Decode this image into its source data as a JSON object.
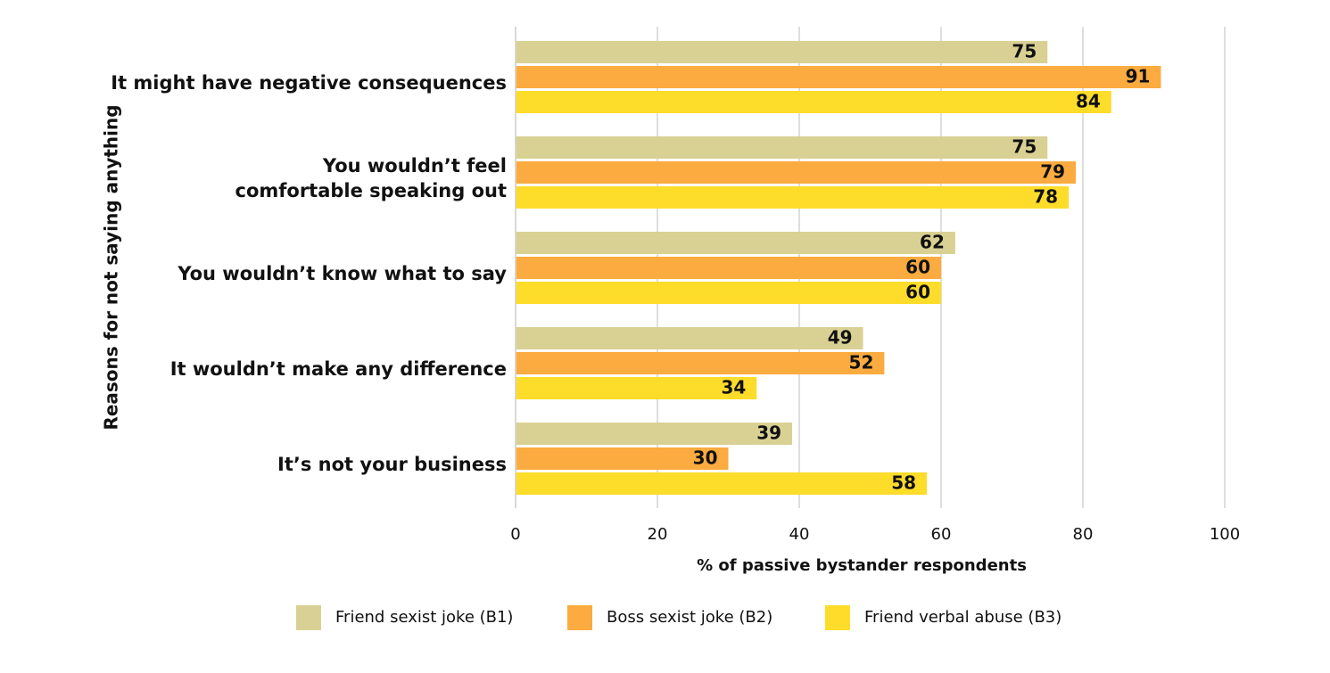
{
  "chart_data": {
    "type": "hbar",
    "y_label": "Reasons for not saying anything",
    "x_label": "% of passive bystander respondents",
    "categories": [
      "It might have negative consequences",
      "You wouldn’t feel\ncomfortable speaking out",
      "You wouldn’t know what to say",
      "It wouldn’t make any difference",
      "It’s not your business"
    ],
    "series": [
      {
        "name": "Friend sexist joke (B1)",
        "color": "#d9d193",
        "values": [
          75,
          75,
          62,
          49,
          39
        ]
      },
      {
        "name": "Boss sexist joke (B2)",
        "color": "#fbab3f",
        "values": [
          91,
          79,
          60,
          52,
          30
        ]
      },
      {
        "name": "Friend verbal abuse (B3)",
        "color": "#fedc2a",
        "values": [
          84,
          78,
          60,
          34,
          58
        ]
      }
    ],
    "xlim": [
      0,
      100
    ],
    "xticks": [
      0,
      20,
      40,
      60,
      80,
      100
    ],
    "grid": true
  }
}
